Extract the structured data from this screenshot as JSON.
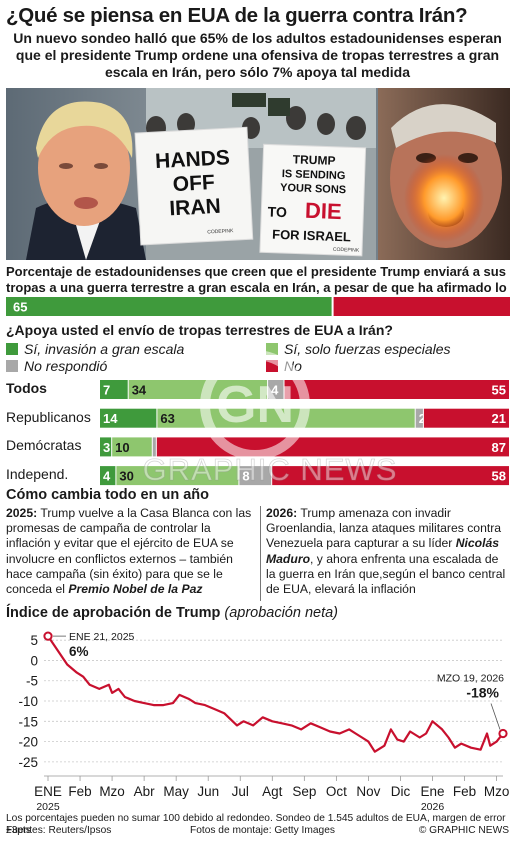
{
  "title": "¿Qué se piensa en EUA de la guerra contra Irán?",
  "subtitle": "Un nuevo sondeo halló que 65% de los adultos estadounidenses esperan que el presidente Trump ordene una ofensiva de tropas terrestres a gran escala en Irán, pero sólo 7% apoya tal medida",
  "photo": {
    "sign1": [
      "HANDS",
      "OFF",
      "IRAN"
    ],
    "sign1_small": "CODEPINK",
    "sign2_lines": [
      "TRUMP",
      "IS SENDING",
      "YOUR SONS",
      "TO",
      "DIE",
      "FOR ISRAEL"
    ],
    "sign2_small": "CODEPINK"
  },
  "expect": {
    "question": "Porcentaje de estadounidenses que creen que el presidente Trump enviará a sus tropas a una guerra terrestre a gran escala en Irán, a pesar de que ha afirmado lo contrario",
    "value": 65
  },
  "support": {
    "question": "¿Apoya usted el envío de tropas terrestres de EUA a Irán?",
    "legend": {
      "full": "Sí, invasión a gran escala",
      "special": "Sí, solo fuerzas especiales",
      "na": "No respondió",
      "no": "No"
    }
  },
  "colors": {
    "dark_green": "#3f9a3c",
    "light_green": "#8ec66e",
    "grey": "#a8a8a8",
    "red": "#c8102e",
    "line": "#c8102e"
  },
  "watermark": {
    "logo": "GN",
    "text": "GRAPHIC NEWS"
  },
  "chart_data": [
    {
      "type": "bar",
      "title": "",
      "categories": [
        "Todos",
        "Republicanos",
        "Demócratas",
        "Independ."
      ],
      "series": [
        {
          "name": "Sí, invasión a gran escala",
          "values": [
            7,
            14,
            3,
            4
          ]
        },
        {
          "name": "Sí, solo fuerzas especiales",
          "values": [
            34,
            63,
            10,
            30
          ]
        },
        {
          "name": "No respondió",
          "values": [
            4,
            2,
            1,
            8
          ]
        },
        {
          "name": "No",
          "values": [
            55,
            21,
            87,
            58
          ]
        }
      ]
    },
    {
      "type": "line",
      "title": "Índice de aprobación de Trump",
      "subtitle": "(aprobación neta)",
      "xlabels": [
        "ENE",
        "Feb",
        "Mzo",
        "Abr",
        "May",
        "Jun",
        "Jul",
        "Agt",
        "Sep",
        "Oct",
        "Nov",
        "Dic",
        "Ene",
        "Feb",
        "Mzo"
      ],
      "year_labels": [
        {
          "under": "ENE",
          "text": "2025"
        },
        {
          "under": "Ene",
          "text": "2026"
        }
      ],
      "yticks": [
        "5",
        "0",
        "-5",
        "-10",
        "-15",
        "-20",
        "-25"
      ],
      "ylim": [
        -27,
        8
      ],
      "x_months": [
        0,
        0.6,
        0.9,
        1.1,
        1.3,
        1.6,
        1.9,
        2.0,
        2.2,
        2.4,
        2.7,
        3.0,
        3.3,
        3.6,
        3.9,
        4.1,
        4.4,
        4.6,
        4.9,
        5.2,
        5.5,
        5.9,
        6.1,
        6.4,
        6.7,
        7.0,
        7.3,
        7.6,
        7.9,
        8.2,
        8.5,
        8.8,
        9.1,
        9.4,
        9.6,
        9.8,
        10.0,
        10.2,
        10.5,
        10.7,
        10.9,
        11.1,
        11.3,
        11.6,
        11.8,
        12.0,
        12.3,
        12.5,
        12.7,
        12.9,
        13.2,
        13.5,
        13.7,
        13.8,
        14.0,
        14.2
      ],
      "values": [
        6,
        -1,
        -3,
        -4,
        -6,
        -7,
        -6,
        -8,
        -7,
        -9,
        -10,
        -10.5,
        -11,
        -11,
        -10.5,
        -8.5,
        -9.5,
        -10.5,
        -11,
        -12,
        -13,
        -16,
        -15,
        -16,
        -14,
        -15,
        -15.5,
        -16,
        -17,
        -15.5,
        -16.5,
        -17.5,
        -18,
        -17,
        -18,
        -19,
        -20,
        -22.5,
        -21,
        -17,
        -19.5,
        -20,
        -17.5,
        -19,
        -18,
        -15,
        -17,
        -19,
        -21.5,
        -20.5,
        -21.5,
        -22,
        -18,
        -21,
        -20,
        -18
      ],
      "annotations": [
        {
          "date": "ENE 21, 2025",
          "value": "6%"
        },
        {
          "date": "MZO 19, 2026",
          "value": "-18%"
        }
      ]
    }
  ],
  "cambia": {
    "title": "Cómo cambia todo en un año",
    "left": {
      "year": "2025:",
      "text": " Trump vuelve a la Casa Blanca con las promesas de campaña de controlar la inflación y evitar que el ejército de EUA se involucre en conflictos externos – también hace campaña (sin éxito) para que se le conceda el ",
      "emph": "Premio Nobel de la Paz"
    },
    "right": {
      "year": "2026:",
      "text1": " Trump amenaza con invadir Groenlandia, lanza ataques militares contra Venezuela para capturar a su líder ",
      "emph": "Nicolás Maduro",
      "text2": ", y ahora enfrenta una escalada de la guerra en Irán que,según el banco central de EUA, elevará la inflación"
    }
  },
  "footer": {
    "note": "Los porcentajes pueden no sumar 100 debido al redondeo. Sondeo de 1.545 adultos de EUA, margen de error ±3pts",
    "sources": "Fuentes: Reuters/Ipsos",
    "photos": "Fotos de montaje: Getty Images",
    "credit": "© GRAPHIC NEWS"
  }
}
